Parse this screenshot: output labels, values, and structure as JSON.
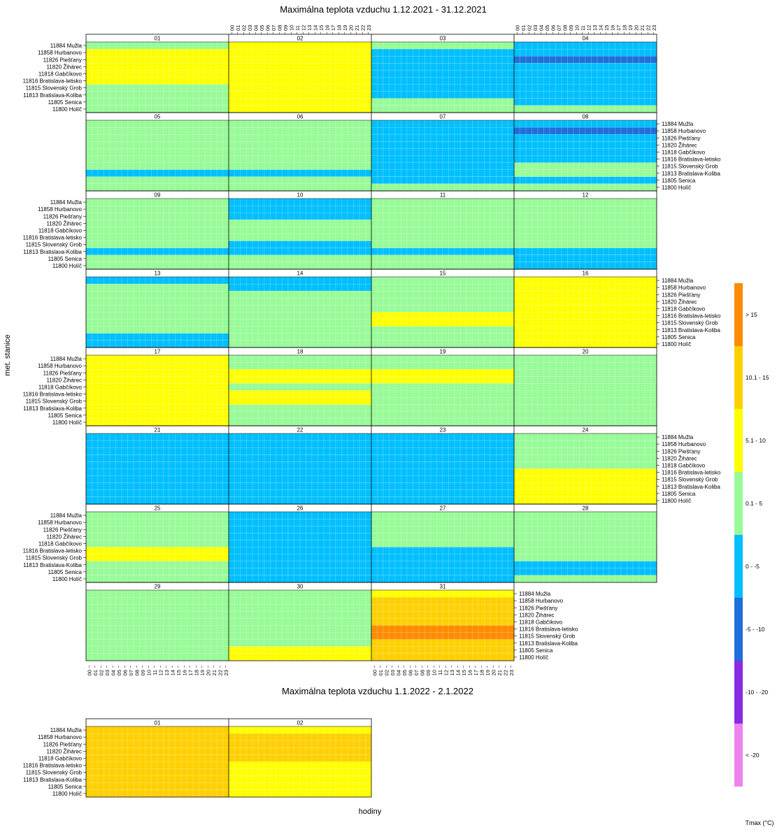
{
  "title_main": "Maximálna teplota vzduchu 1.12.2021 - 31.12.2021",
  "title_second": "Maximálna teplota vzduchu 1.1.2022 - 2.1.2022",
  "y_axis_label": "met. stanice",
  "x_axis_label": "hodiny",
  "legend_title": "Tmax (°C)",
  "stations": [
    "11884 Mužla",
    "11858 Hurbanovo",
    "11826 Piešťany",
    "11820 Žihárec",
    "11818 Gabčíkovo",
    "11816 Bratislava-letisko",
    "11815 Slovenský Grob",
    "11813 Bratislava-Koliba",
    "11805 Senica",
    "11800 Holíč"
  ],
  "hours": [
    "00",
    "01",
    "02",
    "03",
    "04",
    "05",
    "06",
    "07",
    "08",
    "09",
    "10",
    "11",
    "12",
    "13",
    "14",
    "15",
    "16",
    "17",
    "18",
    "19",
    "20",
    "21",
    "22",
    "23"
  ],
  "days_dec": [
    "01",
    "02",
    "03",
    "04",
    "05",
    "06",
    "07",
    "08",
    "09",
    "10",
    "11",
    "12",
    "13",
    "14",
    "15",
    "16",
    "17",
    "18",
    "19",
    "20",
    "21",
    "22",
    "23",
    "24",
    "25",
    "26",
    "27",
    "28",
    "29",
    "30",
    "31"
  ],
  "days_jan": [
    "01",
    "02"
  ],
  "legend": [
    {
      "label": "> 15",
      "color": "#ff8c00"
    },
    {
      "label": "10.1 - 15",
      "color": "#ffd000"
    },
    {
      "label": "5.1 - 10",
      "color": "#ffff00"
    },
    {
      "label": "0.1 - 5",
      "color": "#98fb98"
    },
    {
      "label": "0 - -5",
      "color": "#00bfff"
    },
    {
      "label": "-5 - -10",
      "color": "#1e6fd9"
    },
    {
      "label": "-10 - -20",
      "color": "#8a2be2"
    },
    {
      "label": "< -20",
      "color": "#ee82ee"
    }
  ],
  "chart_data": {
    "type": "heatmap",
    "title": "Maximálna teplota vzduchu 1.12.2021 - 31.12.2021",
    "xlabel": "hodiny",
    "ylabel": "met. stanice",
    "value_encoding": "legend class index: 0='> 15', 1='10.1 - 15', 2='5.1 - 10', 3='0.1 - 5', 4='0 - -5', 5='-5 - -10', 6='-10 - -20', 7='< -20', -1=missing",
    "note": "Approximate daily dominant class per station (hourly detail varies within each day panel)",
    "series": [
      {
        "day": "01",
        "rows": [
          3,
          2,
          2,
          2,
          2,
          2,
          3,
          3,
          3,
          3
        ]
      },
      {
        "day": "02",
        "rows": [
          2,
          2,
          2,
          2,
          2,
          2,
          2,
          2,
          2,
          2
        ]
      },
      {
        "day": "03",
        "rows": [
          3,
          4,
          4,
          4,
          4,
          4,
          4,
          4,
          3,
          3
        ]
      },
      {
        "day": "04",
        "rows": [
          4,
          4,
          5,
          4,
          4,
          4,
          4,
          4,
          4,
          3
        ]
      },
      {
        "day": "05",
        "rows": [
          3,
          3,
          3,
          3,
          3,
          3,
          3,
          4,
          3,
          3
        ]
      },
      {
        "day": "06",
        "rows": [
          3,
          3,
          3,
          3,
          3,
          3,
          3,
          4,
          3,
          3
        ]
      },
      {
        "day": "07",
        "rows": [
          4,
          4,
          4,
          4,
          4,
          4,
          4,
          4,
          4,
          3
        ]
      },
      {
        "day": "08",
        "rows": [
          4,
          5,
          4,
          4,
          4,
          4,
          3,
          3,
          4,
          3
        ]
      },
      {
        "day": "09",
        "rows": [
          3,
          3,
          3,
          3,
          3,
          3,
          3,
          4,
          3,
          3
        ]
      },
      {
        "day": "10",
        "rows": [
          4,
          4,
          4,
          3,
          3,
          3,
          4,
          4,
          3,
          3
        ]
      },
      {
        "day": "11",
        "rows": [
          3,
          3,
          3,
          3,
          3,
          3,
          3,
          4,
          3,
          3
        ]
      },
      {
        "day": "12",
        "rows": [
          3,
          3,
          3,
          3,
          3,
          3,
          3,
          4,
          4,
          4
        ]
      },
      {
        "day": "13",
        "rows": [
          4,
          3,
          3,
          3,
          3,
          3,
          3,
          3,
          4,
          4
        ]
      },
      {
        "day": "14",
        "rows": [
          4,
          4,
          3,
          3,
          3,
          3,
          3,
          3,
          3,
          3
        ]
      },
      {
        "day": "15",
        "rows": [
          3,
          3,
          3,
          3,
          3,
          2,
          2,
          3,
          3,
          3
        ]
      },
      {
        "day": "16",
        "rows": [
          2,
          2,
          2,
          2,
          2,
          2,
          2,
          2,
          2,
          2
        ]
      },
      {
        "day": "17",
        "rows": [
          2,
          2,
          2,
          2,
          2,
          2,
          2,
          2,
          2,
          2
        ]
      },
      {
        "day": "18",
        "rows": [
          3,
          3,
          2,
          2,
          3,
          2,
          2,
          3,
          3,
          3
        ]
      },
      {
        "day": "19",
        "rows": [
          3,
          3,
          2,
          2,
          3,
          3,
          3,
          3,
          3,
          3
        ]
      },
      {
        "day": "20",
        "rows": [
          3,
          3,
          3,
          3,
          3,
          3,
          3,
          3,
          3,
          3
        ]
      },
      {
        "day": "21",
        "rows": [
          4,
          4,
          4,
          4,
          4,
          4,
          4,
          4,
          4,
          4
        ]
      },
      {
        "day": "22",
        "rows": [
          4,
          4,
          4,
          4,
          4,
          4,
          4,
          4,
          4,
          4
        ]
      },
      {
        "day": "23",
        "rows": [
          4,
          4,
          4,
          4,
          4,
          4,
          4,
          4,
          4,
          4
        ]
      },
      {
        "day": "24",
        "rows": [
          3,
          3,
          3,
          3,
          3,
          2,
          2,
          2,
          2,
          2
        ]
      },
      {
        "day": "25",
        "rows": [
          3,
          3,
          3,
          3,
          3,
          2,
          2,
          3,
          3,
          3
        ]
      },
      {
        "day": "26",
        "rows": [
          4,
          4,
          4,
          4,
          4,
          4,
          4,
          4,
          4,
          4
        ]
      },
      {
        "day": "27",
        "rows": [
          3,
          3,
          3,
          3,
          3,
          4,
          4,
          4,
          4,
          4
        ]
      },
      {
        "day": "28",
        "rows": [
          3,
          3,
          3,
          3,
          3,
          3,
          3,
          4,
          4,
          3
        ]
      },
      {
        "day": "29",
        "rows": [
          3,
          3,
          3,
          3,
          3,
          3,
          3,
          3,
          3,
          3
        ]
      },
      {
        "day": "30",
        "rows": [
          3,
          3,
          3,
          3,
          3,
          3,
          3,
          3,
          2,
          2
        ]
      },
      {
        "day": "31",
        "rows": [
          2,
          1,
          1,
          1,
          1,
          0,
          0,
          1,
          1,
          1
        ]
      }
    ],
    "series_jan": [
      {
        "day": "01",
        "rows": [
          1,
          1,
          1,
          1,
          1,
          1,
          1,
          1,
          1,
          1
        ]
      },
      {
        "day": "02",
        "rows": [
          2,
          1,
          1,
          1,
          1,
          2,
          2,
          2,
          2,
          2
        ]
      }
    ]
  }
}
